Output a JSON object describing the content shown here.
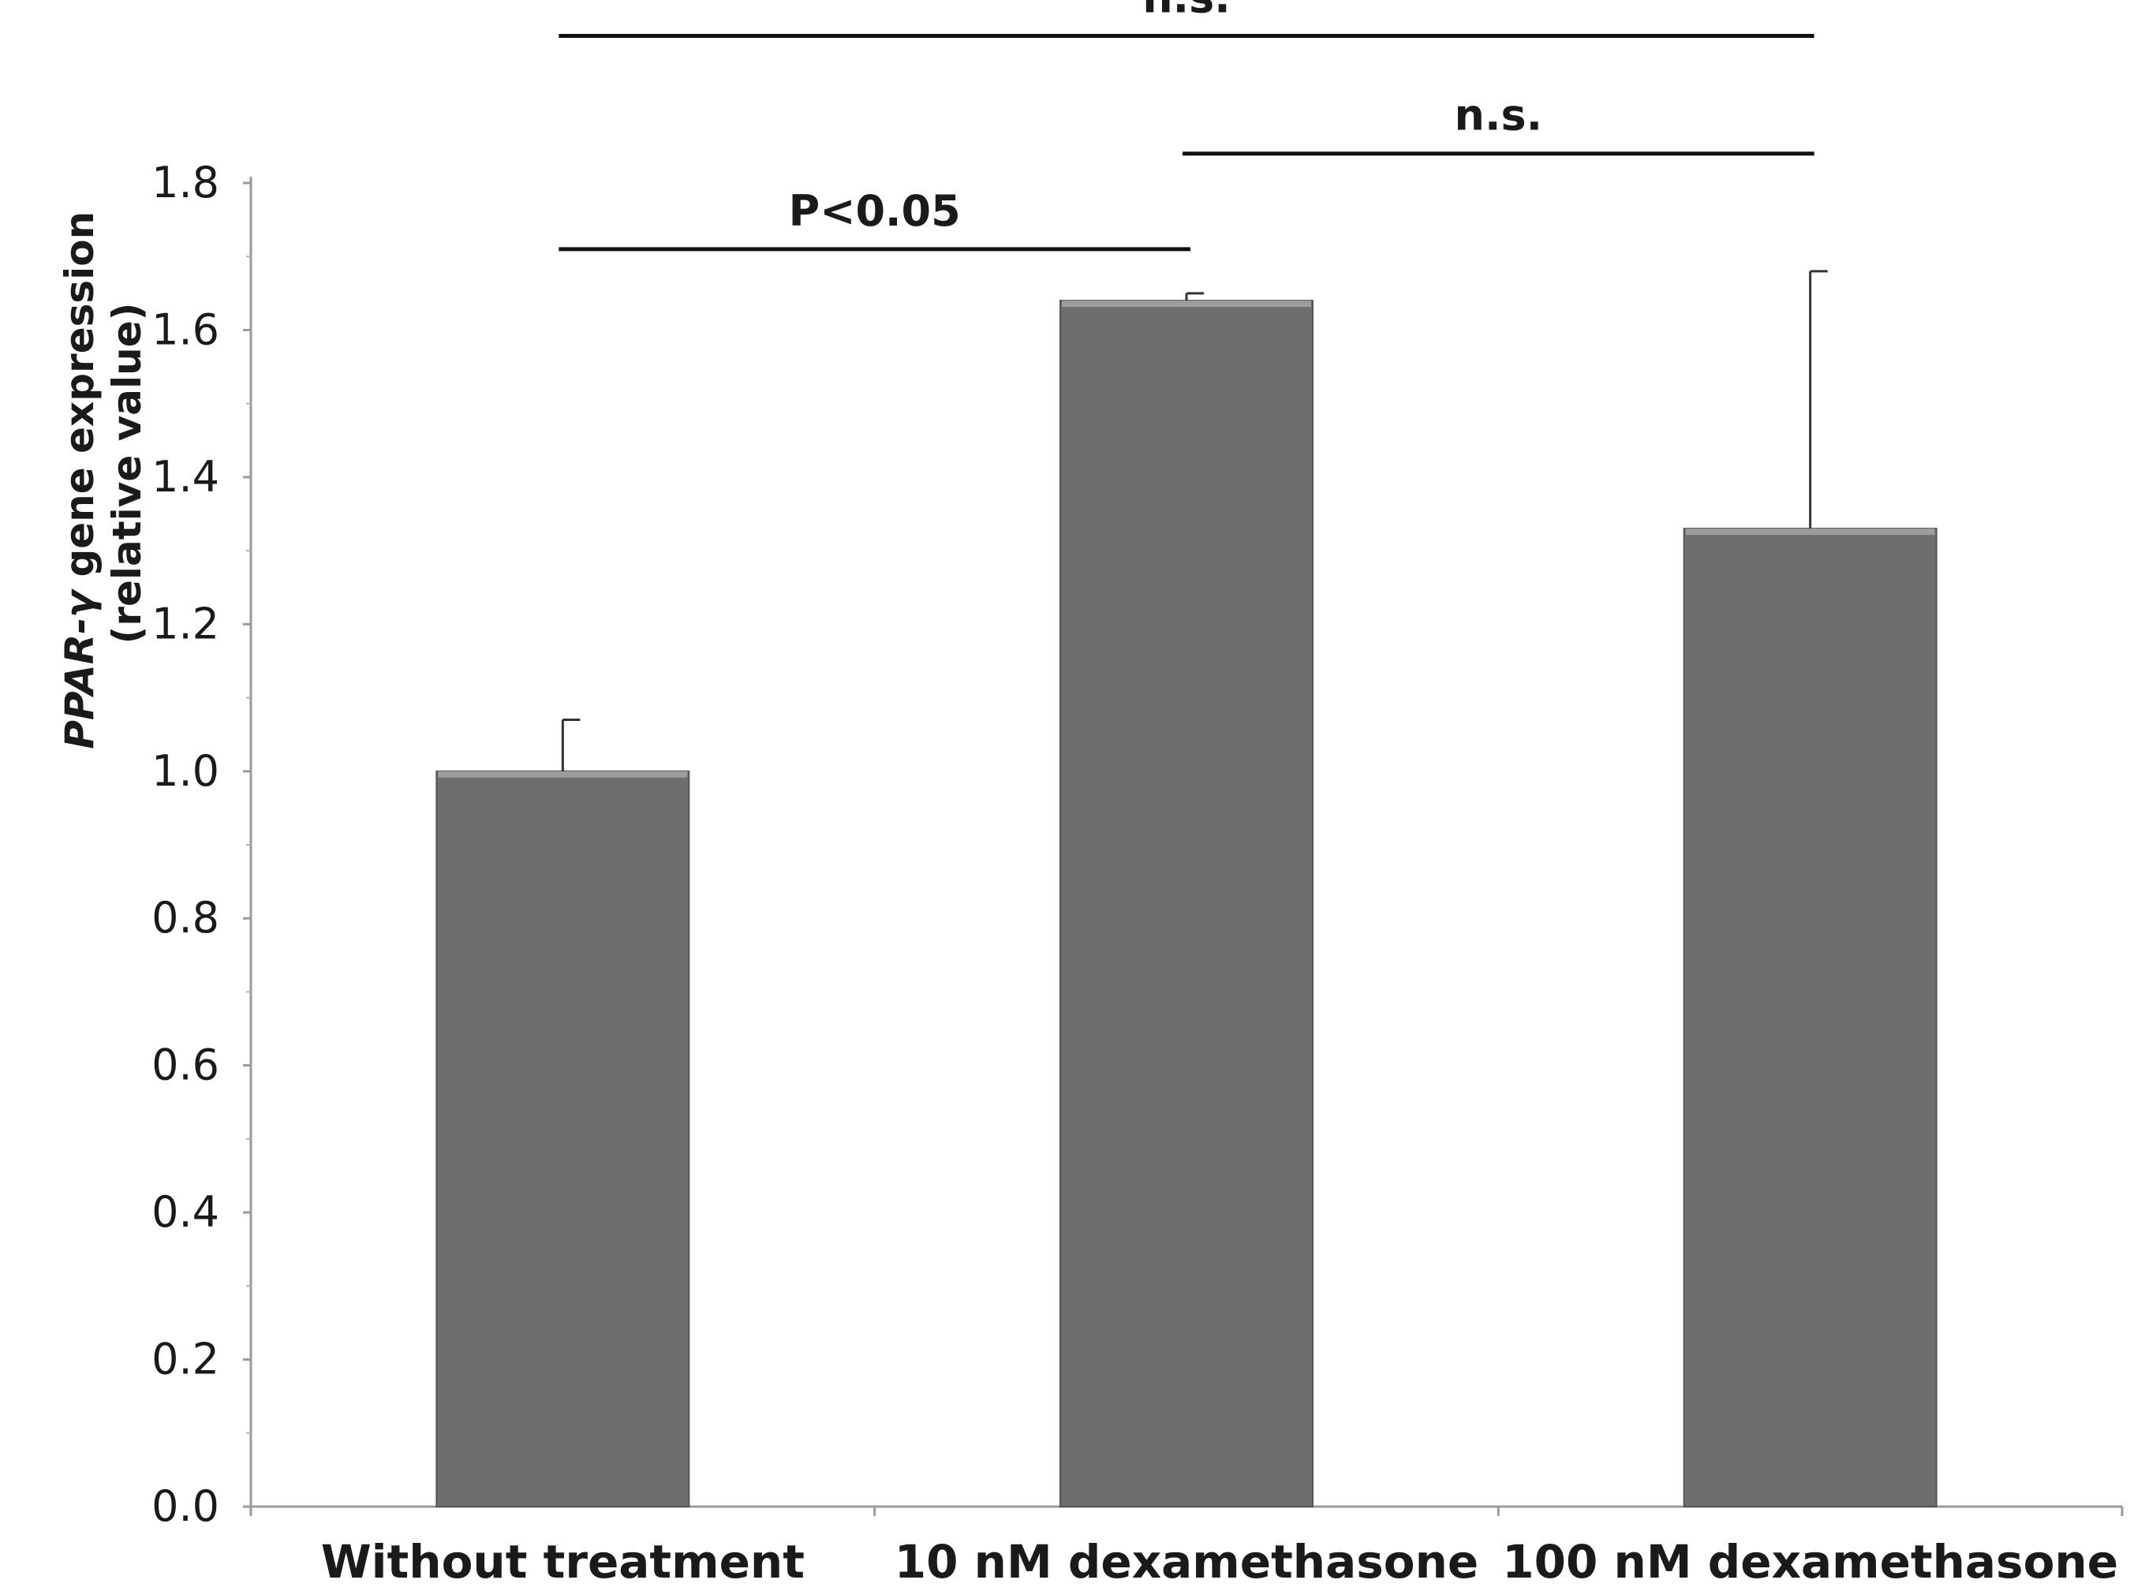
{
  "chart_data": {
    "type": "bar",
    "categories": [
      "Without treatment",
      "10 nM dexamethasone",
      "100 nM dexamethasone"
    ],
    "values": [
      1.0,
      1.64,
      1.33
    ],
    "error_upper": [
      0.07,
      0.01,
      0.35
    ],
    "ylabel_gene": "PPAR-γ",
    "ylabel_rest": " gene expression",
    "ylabel_line2": "(relative value)",
    "ylim": [
      0.0,
      1.8
    ],
    "yticks": [
      "0.0",
      "0.2",
      "0.4",
      "0.6",
      "0.8",
      "1.0",
      "1.2",
      "1.4",
      "1.6",
      "1.8"
    ],
    "bar_color": "#6e6e6e",
    "significance": [
      {
        "from": 0,
        "to": 2,
        "label": "n.s.",
        "level": 2.0
      },
      {
        "from": 1,
        "to": 2,
        "label": "n.s.",
        "level": 1.84
      },
      {
        "from": 0,
        "to": 1,
        "label": "P<0.05",
        "level": 1.71
      }
    ]
  }
}
